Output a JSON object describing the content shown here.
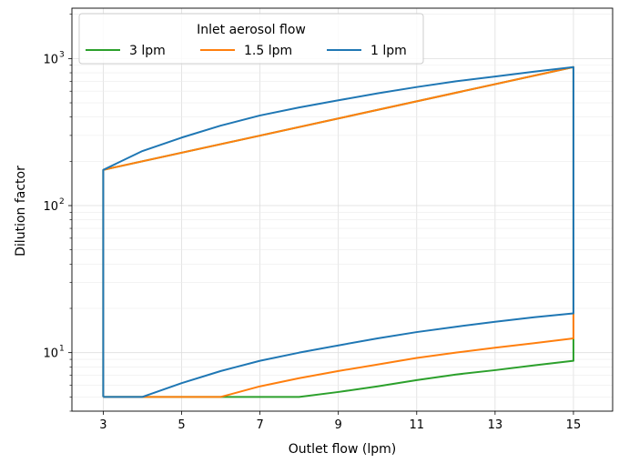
{
  "chart_data": {
    "type": "line",
    "xlabel": "Outlet flow (lpm)",
    "ylabel": "Dilution factor",
    "x_scale": "linear",
    "y_scale": "log",
    "xlim": [
      2.2,
      16.0
    ],
    "ylim": [
      4.0,
      2200
    ],
    "x_ticks": [
      3,
      5,
      7,
      9,
      11,
      13,
      15
    ],
    "x_tick_labels": [
      "3",
      "5",
      "7",
      "9",
      "11",
      "13",
      "15"
    ],
    "y_ticks": [
      10,
      100,
      1000
    ],
    "y_tick_labels": [
      "10",
      "10",
      "10"
    ],
    "y_tick_exponents": [
      "1",
      "2",
      "3"
    ],
    "grid": true,
    "legend_title": "Inlet aerosol flow",
    "legend_position": "top-left",
    "series": [
      {
        "name": "3 lpm",
        "color": "#2ca02c",
        "x": [
          3,
          4,
          5,
          6,
          7,
          8,
          9,
          10,
          11,
          12,
          13,
          14,
          15,
          15,
          15,
          3,
          3
        ],
        "y": [
          5,
          5,
          5,
          5,
          5,
          5,
          5.4,
          5.9,
          6.5,
          7.1,
          7.6,
          8.2,
          8.8,
          12.5,
          875,
          175,
          5
        ]
      },
      {
        "name": "1.5 lpm",
        "color": "#ff7f0e",
        "x": [
          3,
          4,
          5,
          6,
          7,
          8,
          9,
          10,
          11,
          12,
          13,
          14,
          15,
          15,
          15,
          3,
          3
        ],
        "y": [
          5,
          5,
          5,
          5,
          5.9,
          6.7,
          7.5,
          8.3,
          9.2,
          10.0,
          10.8,
          11.6,
          12.5,
          18.5,
          875,
          175,
          5
        ]
      },
      {
        "name": "1 lpm",
        "color": "#1f77b4",
        "x": [
          3,
          4,
          5,
          6,
          7,
          8,
          9,
          10,
          11,
          12,
          13,
          14,
          15,
          15,
          14,
          13,
          12,
          11,
          10,
          9,
          8,
          7,
          6,
          5,
          4,
          3,
          3
        ],
        "y": [
          5,
          5,
          6.2,
          7.5,
          8.8,
          10.0,
          11.2,
          12.5,
          13.8,
          15.0,
          16.2,
          17.4,
          18.5,
          875,
          815,
          755,
          700,
          640,
          580,
          520,
          465,
          410,
          350,
          290,
          235,
          175,
          5
        ]
      }
    ]
  }
}
